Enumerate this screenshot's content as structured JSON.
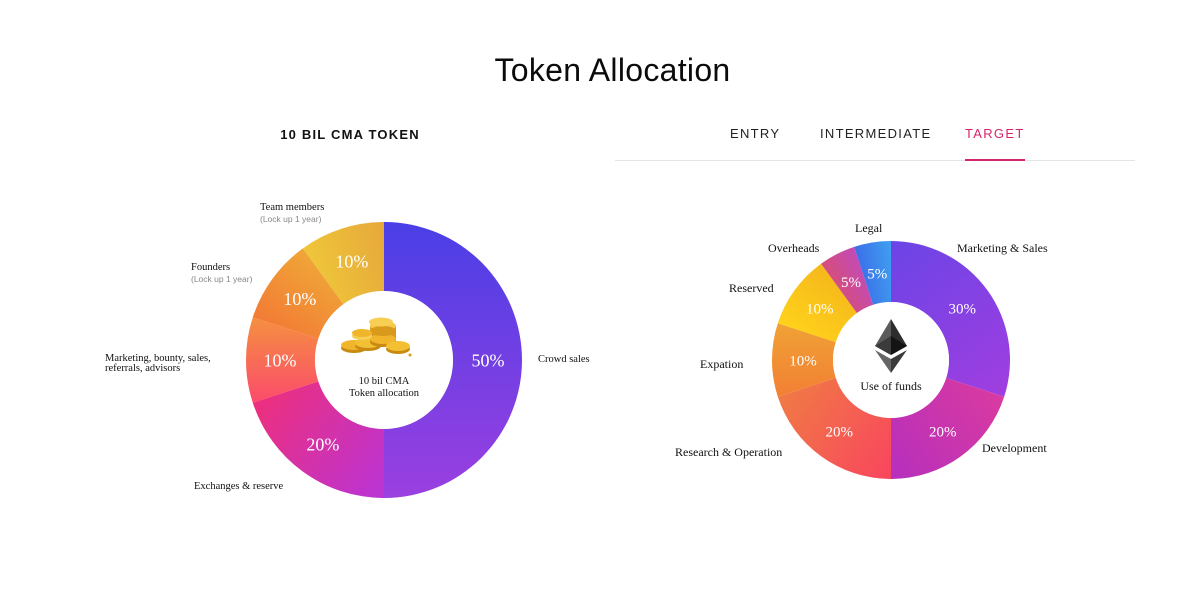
{
  "page": {
    "title": "Token Allocation"
  },
  "left_panel": {
    "heading": "10 BIL CMA TOKEN"
  },
  "tabs": [
    {
      "label": "ENTRY",
      "active": false
    },
    {
      "label": "INTERMEDIATE",
      "active": false
    },
    {
      "label": "TARGET",
      "active": true
    }
  ],
  "chart_data": [
    {
      "type": "pie",
      "variant": "donut",
      "center_label": [
        "10 bil CMA",
        "Token allocation"
      ],
      "center_icon": "gold-coins-icon",
      "categories": [
        "Crowd sales",
        "Exchanges & reserve",
        "Marketing, bounty, sales, referrals, advisors",
        "Founders",
        "Team members"
      ],
      "category_notes": [
        "",
        "",
        "",
        "(Lock up 1 year)",
        "(Lock up 1 year)"
      ],
      "values": [
        50,
        20,
        10,
        10,
        10
      ],
      "value_labels": [
        "50%",
        "20%",
        "10%",
        "10%",
        "10%"
      ],
      "colors": [
        [
          "#4a3fe6",
          "#9b3fe0"
        ],
        [
          "#b934d6",
          "#ee2f7c"
        ],
        [
          "#fb4b6b",
          "#f59040"
        ],
        [
          "#f27a36",
          "#f0a637"
        ],
        [
          "#efc63a",
          "#e6a83a"
        ]
      ]
    },
    {
      "type": "pie",
      "variant": "donut",
      "center_label": [
        "Use of funds"
      ],
      "center_icon": "ethereum-icon",
      "categories": [
        "Marketing & Sales",
        "Development",
        "Research & Operation",
        "Expation",
        "Reserved",
        "Overheads",
        "Legal"
      ],
      "values": [
        30,
        20,
        20,
        10,
        10,
        5,
        5
      ],
      "value_labels": [
        "30%",
        "20%",
        "20%",
        "10%",
        "10%",
        "5%",
        "5%"
      ],
      "colors": [
        [
          "#6b44e6",
          "#a03ee0"
        ],
        [
          "#d93aa0",
          "#b62fbd"
        ],
        [
          "#f9455e",
          "#f07a45"
        ],
        [
          "#f27f34",
          "#f0a235"
        ],
        [
          "#ffd21b",
          "#f5b81b"
        ],
        [
          "#d64e78",
          "#c24bb8"
        ],
        [
          "#3b6ee8",
          "#3fa0f0"
        ]
      ]
    }
  ]
}
